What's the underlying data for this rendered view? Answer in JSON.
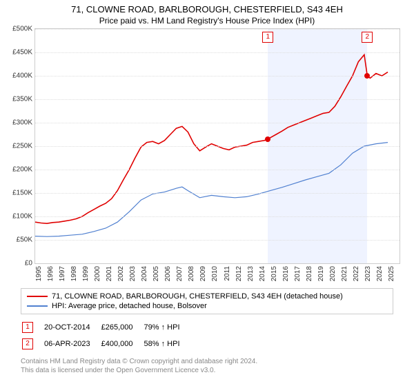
{
  "title": "71, CLOWNE ROAD, BARLBOROUGH, CHESTERFIELD, S43 4EH",
  "subtitle": "Price paid vs. HM Land Registry's House Price Index (HPI)",
  "chart": {
    "type": "line",
    "ylim": [
      0,
      500000
    ],
    "ytick_step": 50000,
    "yticks": [
      "£0",
      "£50K",
      "£100K",
      "£150K",
      "£200K",
      "£250K",
      "£300K",
      "£350K",
      "£400K",
      "£450K",
      "£500K"
    ],
    "xrange": [
      1995,
      2026
    ],
    "xticks": [
      "1995",
      "1996",
      "1997",
      "1998",
      "1999",
      "2000",
      "2001",
      "2002",
      "2003",
      "2004",
      "2005",
      "2006",
      "2007",
      "2008",
      "2009",
      "2010",
      "2011",
      "2012",
      "2013",
      "2014",
      "2015",
      "2016",
      "2017",
      "2018",
      "2019",
      "2020",
      "2021",
      "2022",
      "2023",
      "2024",
      "2025"
    ],
    "background_color": "#ffffff",
    "grid_color": "#dddddd",
    "series_property": {
      "label": "71, CLOWNE ROAD, BARLBOROUGH, CHESTERFIELD, S43 4EH (detached house)",
      "color": "#e00000",
      "width": 1.6,
      "data": [
        [
          1995.0,
          88000
        ],
        [
          1995.5,
          86000
        ],
        [
          1996.0,
          85000
        ],
        [
          1996.5,
          87000
        ],
        [
          1997.0,
          88000
        ],
        [
          1997.5,
          90000
        ],
        [
          1998.0,
          92000
        ],
        [
          1998.5,
          95000
        ],
        [
          1999.0,
          100000
        ],
        [
          1999.5,
          108000
        ],
        [
          2000.0,
          115000
        ],
        [
          2000.5,
          122000
        ],
        [
          2001.0,
          128000
        ],
        [
          2001.5,
          138000
        ],
        [
          2002.0,
          155000
        ],
        [
          2002.5,
          178000
        ],
        [
          2003.0,
          200000
        ],
        [
          2003.5,
          225000
        ],
        [
          2004.0,
          248000
        ],
        [
          2004.5,
          258000
        ],
        [
          2005.0,
          260000
        ],
        [
          2005.5,
          255000
        ],
        [
          2006.0,
          262000
        ],
        [
          2006.5,
          275000
        ],
        [
          2007.0,
          288000
        ],
        [
          2007.5,
          292000
        ],
        [
          2008.0,
          280000
        ],
        [
          2008.5,
          255000
        ],
        [
          2009.0,
          240000
        ],
        [
          2009.5,
          248000
        ],
        [
          2010.0,
          255000
        ],
        [
          2010.5,
          250000
        ],
        [
          2011.0,
          245000
        ],
        [
          2011.5,
          242000
        ],
        [
          2012.0,
          248000
        ],
        [
          2012.5,
          250000
        ],
        [
          2013.0,
          252000
        ],
        [
          2013.5,
          258000
        ],
        [
          2014.0,
          260000
        ],
        [
          2014.5,
          262000
        ],
        [
          2014.8,
          265000
        ],
        [
          2015.0,
          268000
        ],
        [
          2015.5,
          275000
        ],
        [
          2016.0,
          282000
        ],
        [
          2016.5,
          290000
        ],
        [
          2017.0,
          295000
        ],
        [
          2017.5,
          300000
        ],
        [
          2018.0,
          305000
        ],
        [
          2018.5,
          310000
        ],
        [
          2019.0,
          315000
        ],
        [
          2019.5,
          320000
        ],
        [
          2020.0,
          322000
        ],
        [
          2020.5,
          335000
        ],
        [
          2021.0,
          355000
        ],
        [
          2021.5,
          378000
        ],
        [
          2022.0,
          400000
        ],
        [
          2022.5,
          430000
        ],
        [
          2023.0,
          445000
        ],
        [
          2023.26,
          400000
        ],
        [
          2023.5,
          395000
        ],
        [
          2024.0,
          405000
        ],
        [
          2024.5,
          400000
        ],
        [
          2025.0,
          408000
        ]
      ]
    },
    "series_hpi": {
      "label": "HPI: Average price, detached house, Bolsover",
      "color": "#5080d0",
      "width": 1.2,
      "data": [
        [
          1995.0,
          58000
        ],
        [
          1996.0,
          57000
        ],
        [
          1997.0,
          58000
        ],
        [
          1998.0,
          60000
        ],
        [
          1999.0,
          62000
        ],
        [
          2000.0,
          68000
        ],
        [
          2001.0,
          75000
        ],
        [
          2002.0,
          88000
        ],
        [
          2003.0,
          110000
        ],
        [
          2004.0,
          135000
        ],
        [
          2005.0,
          148000
        ],
        [
          2006.0,
          152000
        ],
        [
          2007.0,
          160000
        ],
        [
          2007.5,
          163000
        ],
        [
          2008.0,
          155000
        ],
        [
          2009.0,
          140000
        ],
        [
          2010.0,
          145000
        ],
        [
          2011.0,
          142000
        ],
        [
          2012.0,
          140000
        ],
        [
          2013.0,
          142000
        ],
        [
          2014.0,
          148000
        ],
        [
          2015.0,
          155000
        ],
        [
          2016.0,
          162000
        ],
        [
          2017.0,
          170000
        ],
        [
          2018.0,
          178000
        ],
        [
          2019.0,
          185000
        ],
        [
          2020.0,
          192000
        ],
        [
          2021.0,
          210000
        ],
        [
          2022.0,
          235000
        ],
        [
          2023.0,
          250000
        ],
        [
          2024.0,
          255000
        ],
        [
          2025.0,
          258000
        ]
      ]
    },
    "shade": {
      "from": 2014.8,
      "to": 2023.26
    },
    "markers": [
      {
        "id": "1",
        "year": 2014.8,
        "value": 265000,
        "color": "#e00000"
      },
      {
        "id": "2",
        "year": 2023.26,
        "value": 400000,
        "color": "#e00000"
      }
    ]
  },
  "sales": [
    {
      "id": "1",
      "date": "20-OCT-2014",
      "price": "£265,000",
      "pct": "79% ↑ HPI",
      "color": "#e00000"
    },
    {
      "id": "2",
      "date": "06-APR-2023",
      "price": "£400,000",
      "pct": "58% ↑ HPI",
      "color": "#e00000"
    }
  ],
  "footer_line1": "Contains HM Land Registry data © Crown copyright and database right 2024.",
  "footer_line2": "This data is licensed under the Open Government Licence v3.0."
}
